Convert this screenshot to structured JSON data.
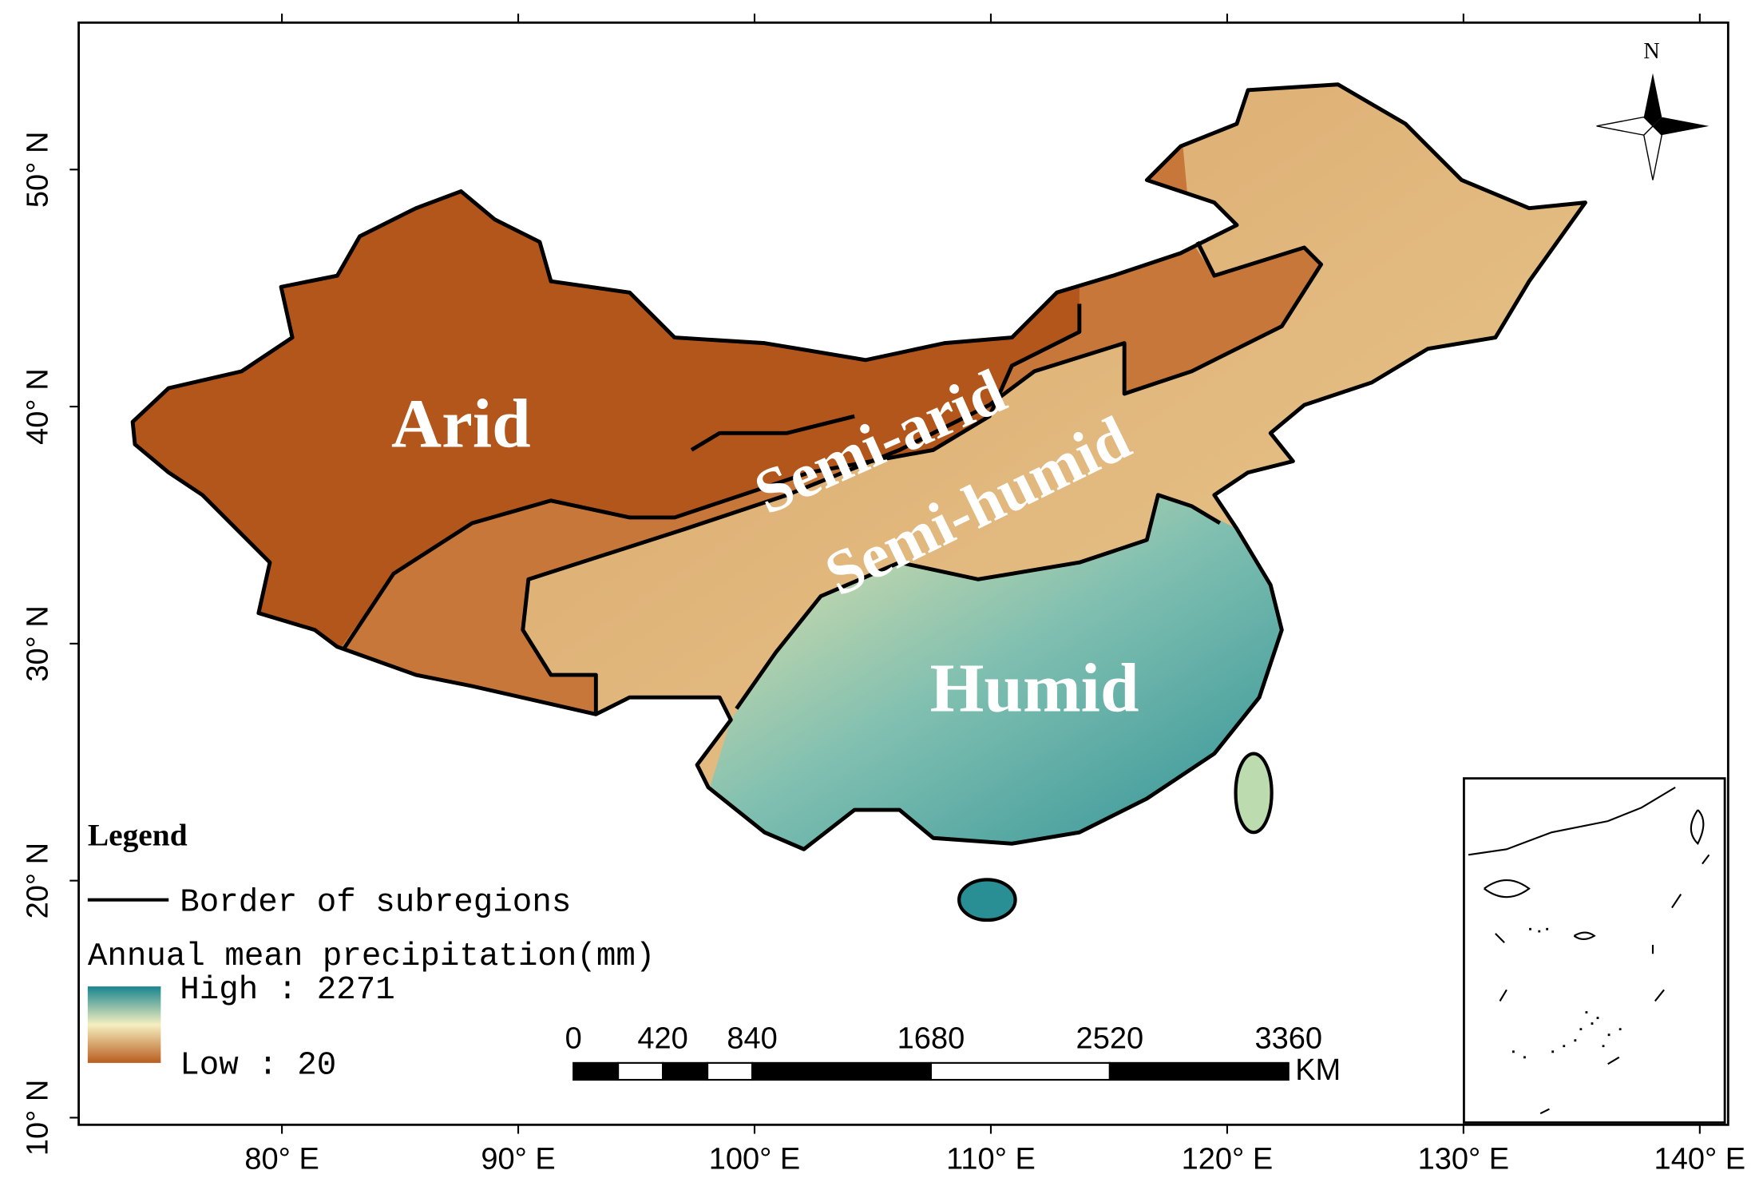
{
  "map": {
    "xlim": [
      71.4,
      141.2
    ],
    "ylim": [
      9.7,
      56.2
    ],
    "xticks": [
      {
        "value": 80,
        "label": "80° E"
      },
      {
        "value": 90,
        "label": "90° E"
      },
      {
        "value": 100,
        "label": "100° E"
      },
      {
        "value": 110,
        "label": "110° E"
      },
      {
        "value": 120,
        "label": "120° E"
      },
      {
        "value": 130,
        "label": "130° E"
      },
      {
        "value": 140,
        "label": "140° E"
      }
    ],
    "yticks": [
      {
        "value": 10,
        "label": "10° N"
      },
      {
        "value": 20,
        "label": "20° N"
      },
      {
        "value": 30,
        "label": "30° N"
      },
      {
        "value": 40,
        "label": "40° N"
      },
      {
        "value": 50,
        "label": "50° N"
      }
    ],
    "regions": [
      "Arid",
      "Semi-arid",
      "Semi-humid",
      "Humid"
    ],
    "north": "N"
  },
  "legend": {
    "title": "Legend",
    "border": "Border of subregions",
    "precip_title": "Annual mean precipitation(mm)",
    "high": "High : 2271",
    "low": "Low : 20"
  },
  "scale_bar": {
    "ticks": [
      0,
      420,
      840,
      1680,
      2520,
      3360
    ],
    "unit": "KM"
  }
}
